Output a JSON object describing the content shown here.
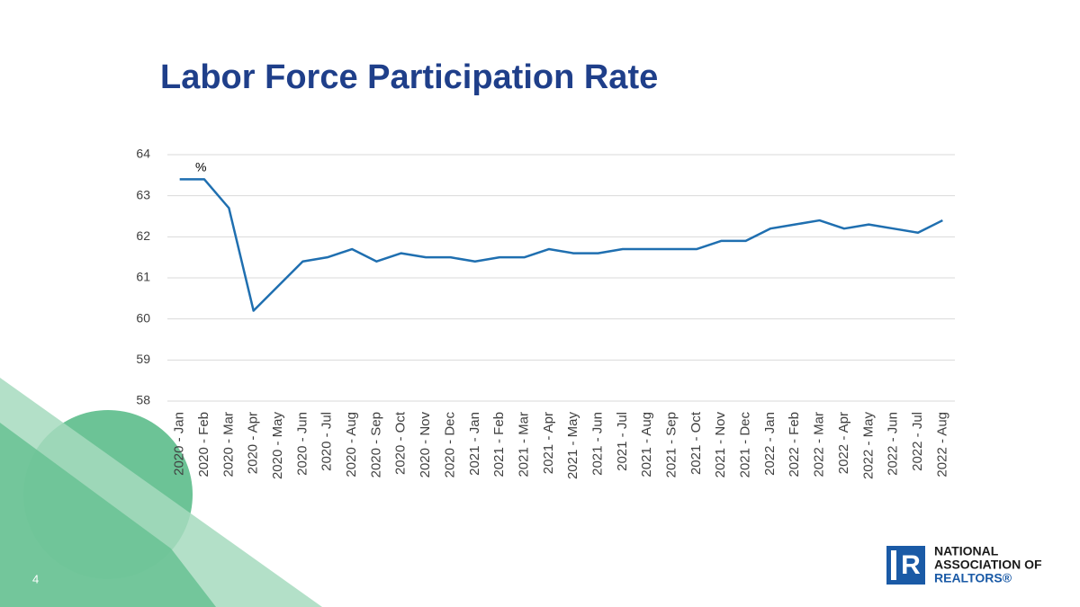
{
  "chart_data": {
    "type": "line",
    "title": "Labor Force Participation Rate",
    "unit_label": "%",
    "categories": [
      "2020 - Jan",
      "2020 - Feb",
      "2020 - Mar",
      "2020 - Apr",
      "2020 - May",
      "2020 - Jun",
      "2020 - Jul",
      "2020 - Aug",
      "2020 - Sep",
      "2020 - Oct",
      "2020 - Nov",
      "2020 - Dec",
      "2021 - Jan",
      "2021 - Feb",
      "2021 - Mar",
      "2021 - Apr",
      "2021 - May",
      "2021 - Jun",
      "2021 - Jul",
      "2021 - Aug",
      "2021 - Sep",
      "2021 - Oct",
      "2021 - Nov",
      "2021 - Dec",
      "2022 - Jan",
      "2022 - Feb",
      "2022 - Mar",
      "2022 - Apr",
      "2022 - May",
      "2022 - Jun",
      "2022 - Jul",
      "2022 - Aug"
    ],
    "values": [
      63.4,
      63.4,
      62.7,
      60.2,
      60.8,
      61.4,
      61.5,
      61.7,
      61.4,
      61.6,
      61.5,
      61.5,
      61.4,
      61.5,
      61.5,
      61.7,
      61.6,
      61.6,
      61.7,
      61.7,
      61.7,
      61.7,
      61.9,
      61.9,
      62.2,
      62.3,
      62.4,
      62.2,
      62.3,
      62.2,
      62.1,
      62.4
    ],
    "color": "#1f6fb0",
    "ylim": [
      58,
      64
    ],
    "yticks": [
      58,
      59,
      60,
      61,
      62,
      63,
      64
    ],
    "grid": true
  },
  "slide": {
    "page_number": "4",
    "logo_lines": [
      "NATIONAL",
      "ASSOCIATION OF",
      "REALTORS®"
    ]
  }
}
